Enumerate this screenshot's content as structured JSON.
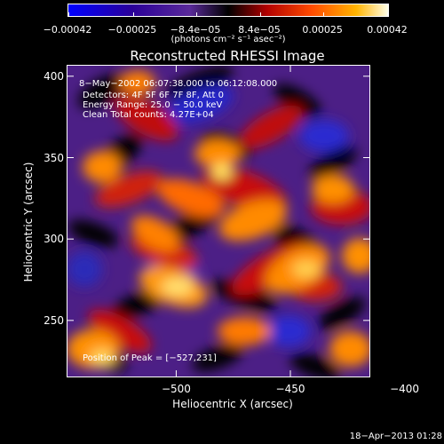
{
  "chart_data": {
    "type": "heatmap",
    "title": "Reconstructed RHESSI Image",
    "xlabel": "Heliocentric X (arcsec)",
    "ylabel": "Heliocentric Y (arcsec)",
    "xlim": [
      -548,
      -415
    ],
    "ylim": [
      215,
      407
    ],
    "x_ticks": [
      {
        "value": -500,
        "label": "−500"
      },
      {
        "value": -450,
        "label": "−450"
      },
      {
        "value": -400,
        "label": "−400"
      }
    ],
    "y_ticks": [
      {
        "value": 250,
        "label": "250"
      },
      {
        "value": 300,
        "label": "300"
      },
      {
        "value": 350,
        "label": "350"
      },
      {
        "value": 400,
        "label": "400"
      }
    ],
    "colorbar": {
      "range": [
        -0.00042,
        0.00042
      ],
      "ticks": [
        {
          "value": -0.00042,
          "label": "−0.00042"
        },
        {
          "value": -0.00025,
          "label": "−0.00025"
        },
        {
          "value": -8.4e-05,
          "label": "−8.4e−05"
        },
        {
          "value": 8.4e-05,
          "label": "8.4e−05"
        },
        {
          "value": 0.00025,
          "label": "0.00025"
        },
        {
          "value": 0.00042,
          "label": "0.00042"
        }
      ],
      "units": "(photons cm⁻² s⁻¹ asec⁻²)"
    },
    "annotations": {
      "time_range": "8−May−2002 06:07:38.000 to 06:12:08.000",
      "detectors": "Detectors: 4F 5F 6F 7F 8F, Att 0",
      "energy": "Energy Range: 25.0 − 50.0 keV",
      "clean": "Clean     Total counts: 4.27E+04",
      "peak": "Position of Peak = [−527,231]"
    },
    "peak_position": [
      -527,
      231
    ],
    "grid": false
  },
  "timestamp": "18−Apr−2013 01:28",
  "colors": {
    "background": "#000000",
    "text": "#ffffff"
  }
}
